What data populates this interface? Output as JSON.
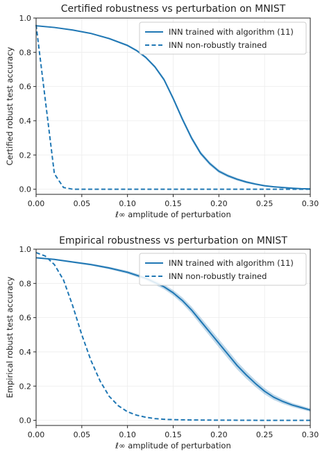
{
  "chart_data": [
    {
      "type": "line",
      "title": "Certified robustness vs perturbation on MNIST",
      "xlabel": "ℓ∞ amplitude of perturbation",
      "ylabel": "Certified robust test accuracy",
      "xlim": [
        0,
        0.3
      ],
      "ylim": [
        -0.03,
        1.0
      ],
      "xticks": [
        "0.00",
        "0.05",
        "0.10",
        "0.15",
        "0.20",
        "0.25",
        "0.30"
      ],
      "yticks": [
        "0.0",
        "0.2",
        "0.4",
        "0.6",
        "0.8",
        "1.0"
      ],
      "grid": true,
      "legend": "top-right",
      "series": [
        {
          "name": "INN trained with algorithm (11)",
          "style": "solid",
          "color": "#1f77b4",
          "band": true,
          "x": [
            0,
            0.02,
            0.04,
            0.06,
            0.08,
            0.1,
            0.11,
            0.12,
            0.13,
            0.14,
            0.15,
            0.16,
            0.17,
            0.18,
            0.19,
            0.2,
            0.21,
            0.22,
            0.23,
            0.24,
            0.25,
            0.26,
            0.27,
            0.28,
            0.29,
            0.3
          ],
          "y": [
            0.955,
            0.945,
            0.93,
            0.91,
            0.88,
            0.84,
            0.81,
            0.77,
            0.715,
            0.64,
            0.53,
            0.41,
            0.3,
            0.21,
            0.15,
            0.105,
            0.078,
            0.058,
            0.042,
            0.03,
            0.02,
            0.014,
            0.01,
            0.006,
            0.003,
            0.002
          ],
          "band_width": [
            0.003,
            0.003,
            0.004,
            0.004,
            0.005,
            0.006,
            0.006,
            0.007,
            0.008,
            0.01,
            0.012,
            0.013,
            0.013,
            0.012,
            0.011,
            0.01,
            0.009,
            0.008,
            0.007,
            0.006,
            0.005,
            0.004,
            0.003,
            0.002,
            0.002,
            0.002
          ]
        },
        {
          "name": "INN non-robustly trained",
          "style": "dashed",
          "color": "#1f77b4",
          "band": false,
          "x": [
            0,
            0.02,
            0.03,
            0.04,
            0.06,
            0.1,
            0.15,
            0.2,
            0.25,
            0.3
          ],
          "y": [
            0.96,
            0.09,
            0.01,
            0.0,
            0.0,
            0.0,
            0.0,
            0.0,
            0.0,
            0.0
          ]
        }
      ]
    },
    {
      "type": "line",
      "title": "Empirical robustness vs perturbation on MNIST",
      "xlabel": "ℓ∞ amplitude of perturbation",
      "ylabel": "Empirical robust test accuracy",
      "xlim": [
        0,
        0.3
      ],
      "ylim": [
        -0.03,
        1.0
      ],
      "xticks": [
        "0.00",
        "0.05",
        "0.10",
        "0.15",
        "0.20",
        "0.25",
        "0.30"
      ],
      "yticks": [
        "0.0",
        "0.2",
        "0.4",
        "0.6",
        "0.8",
        "1.0"
      ],
      "grid": true,
      "legend": "top-right",
      "series": [
        {
          "name": "INN trained with algorithm (11)",
          "style": "solid",
          "color": "#1f77b4",
          "band": true,
          "x": [
            0,
            0.02,
            0.04,
            0.06,
            0.08,
            0.1,
            0.12,
            0.14,
            0.15,
            0.16,
            0.17,
            0.18,
            0.19,
            0.2,
            0.21,
            0.22,
            0.23,
            0.24,
            0.25,
            0.26,
            0.27,
            0.28,
            0.29,
            0.3
          ],
          "y": [
            0.95,
            0.94,
            0.925,
            0.91,
            0.89,
            0.865,
            0.83,
            0.78,
            0.745,
            0.7,
            0.645,
            0.58,
            0.515,
            0.45,
            0.385,
            0.32,
            0.265,
            0.215,
            0.17,
            0.135,
            0.11,
            0.09,
            0.075,
            0.06
          ],
          "band_width": [
            0.004,
            0.004,
            0.005,
            0.006,
            0.007,
            0.009,
            0.011,
            0.014,
            0.016,
            0.018,
            0.02,
            0.022,
            0.023,
            0.024,
            0.024,
            0.023,
            0.022,
            0.02,
            0.018,
            0.016,
            0.014,
            0.012,
            0.011,
            0.01
          ]
        },
        {
          "name": "INN non-robustly trained",
          "style": "dashed",
          "color": "#1f77b4",
          "band": false,
          "x": [
            0,
            0.01,
            0.02,
            0.03,
            0.04,
            0.05,
            0.06,
            0.07,
            0.08,
            0.09,
            0.1,
            0.11,
            0.12,
            0.13,
            0.14,
            0.15,
            0.17,
            0.2,
            0.25,
            0.3
          ],
          "y": [
            0.98,
            0.96,
            0.91,
            0.82,
            0.67,
            0.5,
            0.35,
            0.23,
            0.14,
            0.085,
            0.05,
            0.03,
            0.018,
            0.01,
            0.006,
            0.004,
            0.002,
            0.001,
            0.0,
            0.0
          ]
        }
      ]
    }
  ]
}
